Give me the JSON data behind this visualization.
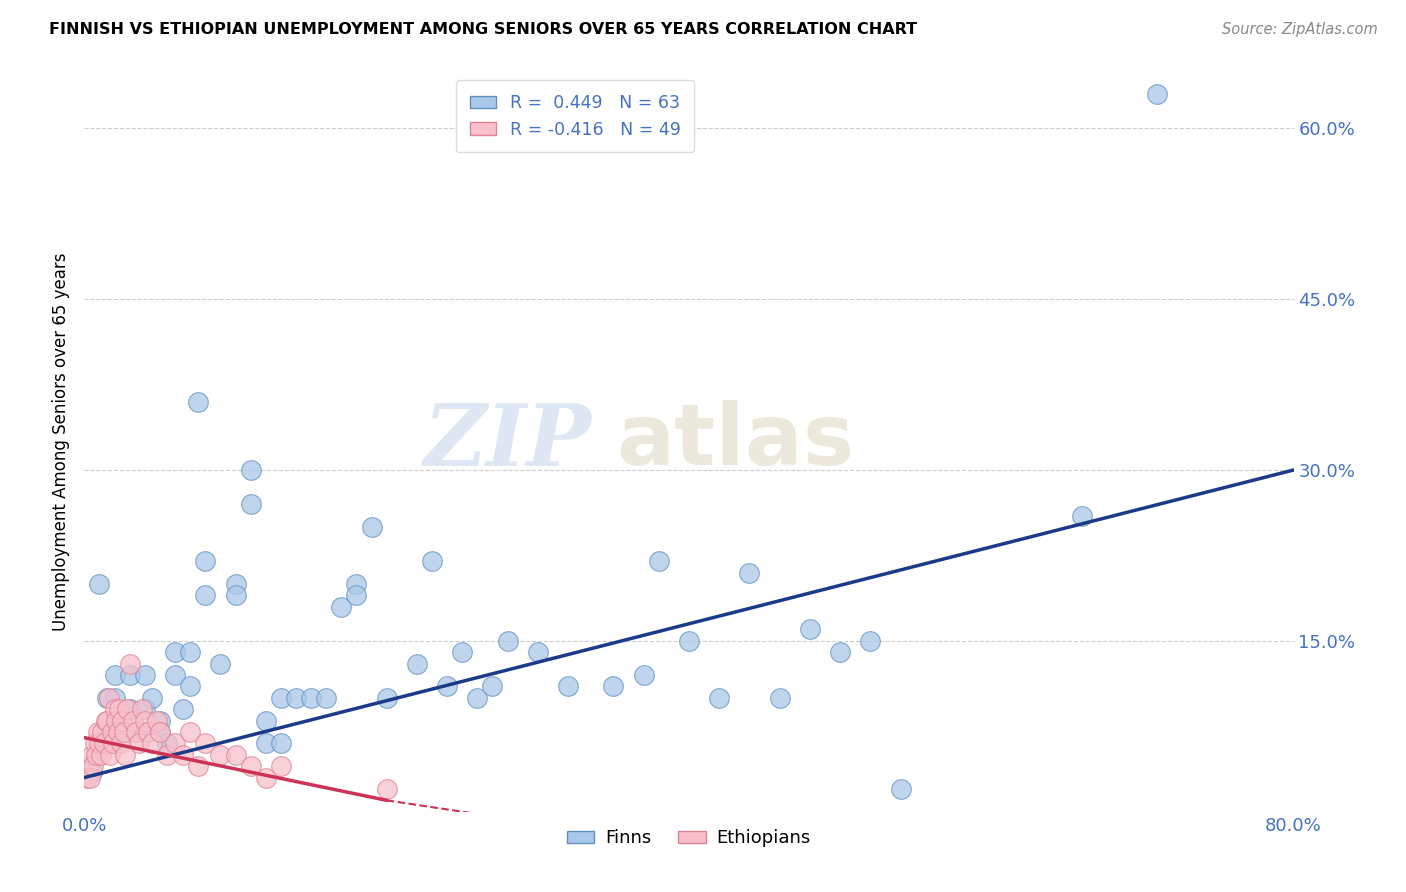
{
  "title": "FINNISH VS ETHIOPIAN UNEMPLOYMENT AMONG SENIORS OVER 65 YEARS CORRELATION CHART",
  "source": "Source: ZipAtlas.com",
  "ylabel": "Unemployment Among Seniors over 65 years",
  "xlim": [
    0.0,
    0.8
  ],
  "ylim": [
    0.0,
    0.65
  ],
  "x_ticks": [
    0.0,
    0.2,
    0.4,
    0.6,
    0.8
  ],
  "x_tick_labels": [
    "0.0%",
    "",
    "",
    "",
    "80.0%"
  ],
  "y_ticks": [
    0.0,
    0.15,
    0.3,
    0.45,
    0.6
  ],
  "y_tick_labels": [
    "",
    "15.0%",
    "30.0%",
    "45.0%",
    "60.0%"
  ],
  "finns_color": "#aac8e8",
  "ethiopians_color": "#f8c0cc",
  "finns_edge_color": "#6090c0",
  "ethiopians_edge_color": "#e08090",
  "regression_finns_color": "#1a3a8a",
  "regression_ethiopians_color": "#cc3355",
  "legend_finns_R": "0.449",
  "legend_finns_N": "63",
  "legend_ethiopians_R": "-0.416",
  "legend_ethiopians_N": "49",
  "watermark_zip": "ZIP",
  "watermark_atlas": "atlas",
  "background_color": "#ffffff",
  "grid_color": "#cccccc",
  "tick_color": "#4472c4",
  "title_color": "#000000",
  "finns_x": [
    0.005,
    0.01,
    0.015,
    0.02,
    0.02,
    0.025,
    0.03,
    0.03,
    0.035,
    0.04,
    0.04,
    0.04,
    0.045,
    0.05,
    0.05,
    0.055,
    0.06,
    0.06,
    0.065,
    0.07,
    0.07,
    0.075,
    0.08,
    0.08,
    0.09,
    0.1,
    0.1,
    0.11,
    0.11,
    0.12,
    0.12,
    0.13,
    0.13,
    0.14,
    0.15,
    0.16,
    0.17,
    0.18,
    0.18,
    0.19,
    0.2,
    0.22,
    0.23,
    0.24,
    0.25,
    0.26,
    0.27,
    0.28,
    0.3,
    0.32,
    0.35,
    0.37,
    0.38,
    0.4,
    0.42,
    0.44,
    0.46,
    0.48,
    0.5,
    0.52,
    0.54,
    0.66,
    0.71
  ],
  "finns_y": [
    0.035,
    0.2,
    0.1,
    0.12,
    0.1,
    0.08,
    0.12,
    0.09,
    0.07,
    0.12,
    0.09,
    0.07,
    0.1,
    0.08,
    0.07,
    0.06,
    0.14,
    0.12,
    0.09,
    0.14,
    0.11,
    0.36,
    0.22,
    0.19,
    0.13,
    0.2,
    0.19,
    0.3,
    0.27,
    0.08,
    0.06,
    0.1,
    0.06,
    0.1,
    0.1,
    0.1,
    0.18,
    0.2,
    0.19,
    0.25,
    0.1,
    0.13,
    0.22,
    0.11,
    0.14,
    0.1,
    0.11,
    0.15,
    0.14,
    0.11,
    0.11,
    0.12,
    0.22,
    0.15,
    0.1,
    0.21,
    0.1,
    0.16,
    0.14,
    0.15,
    0.02,
    0.26,
    0.63
  ],
  "ethiopians_x": [
    0.002,
    0.003,
    0.004,
    0.005,
    0.006,
    0.007,
    0.008,
    0.009,
    0.01,
    0.011,
    0.012,
    0.013,
    0.014,
    0.015,
    0.016,
    0.017,
    0.018,
    0.019,
    0.02,
    0.021,
    0.022,
    0.023,
    0.024,
    0.025,
    0.026,
    0.027,
    0.028,
    0.03,
    0.032,
    0.034,
    0.036,
    0.038,
    0.04,
    0.042,
    0.045,
    0.048,
    0.05,
    0.055,
    0.06,
    0.065,
    0.07,
    0.075,
    0.08,
    0.09,
    0.1,
    0.11,
    0.12,
    0.13,
    0.2
  ],
  "ethiopians_y": [
    0.03,
    0.04,
    0.03,
    0.05,
    0.04,
    0.06,
    0.05,
    0.07,
    0.06,
    0.05,
    0.07,
    0.06,
    0.08,
    0.08,
    0.1,
    0.05,
    0.07,
    0.06,
    0.09,
    0.08,
    0.07,
    0.09,
    0.06,
    0.08,
    0.07,
    0.05,
    0.09,
    0.13,
    0.08,
    0.07,
    0.06,
    0.09,
    0.08,
    0.07,
    0.06,
    0.08,
    0.07,
    0.05,
    0.06,
    0.05,
    0.07,
    0.04,
    0.06,
    0.05,
    0.05,
    0.04,
    0.03,
    0.04,
    0.02
  ]
}
